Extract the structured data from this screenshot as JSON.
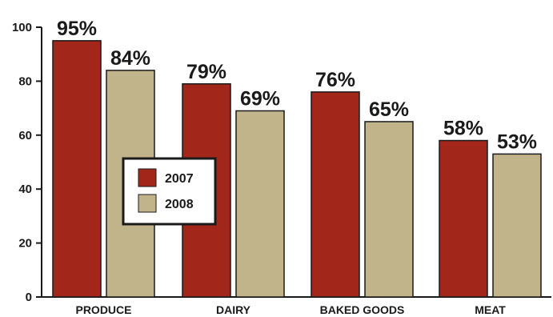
{
  "chart_data": {
    "type": "bar",
    "categories": [
      "PRODUCE",
      "DAIRY",
      "BAKED GOODS",
      "MEAT"
    ],
    "series": [
      {
        "name": "2007",
        "values": [
          95,
          79,
          76,
          58
        ],
        "labels": [
          "95%",
          "79%",
          "76%",
          "58%"
        ],
        "color": "#a3261b"
      },
      {
        "name": "2008",
        "values": [
          84,
          69,
          65,
          53
        ],
        "labels": [
          "84%",
          "69%",
          "65%",
          "53%"
        ],
        "color": "#c2b48a"
      }
    ],
    "ylim": [
      0,
      100
    ],
    "yticks": [
      0,
      20,
      40,
      60,
      80,
      100
    ],
    "ytick_labels": [
      "0",
      "20",
      "40",
      "60",
      "80",
      "100"
    ],
    "title": "",
    "xlabel": "",
    "ylabel": "",
    "grid": false,
    "legend_position": "center-left"
  }
}
